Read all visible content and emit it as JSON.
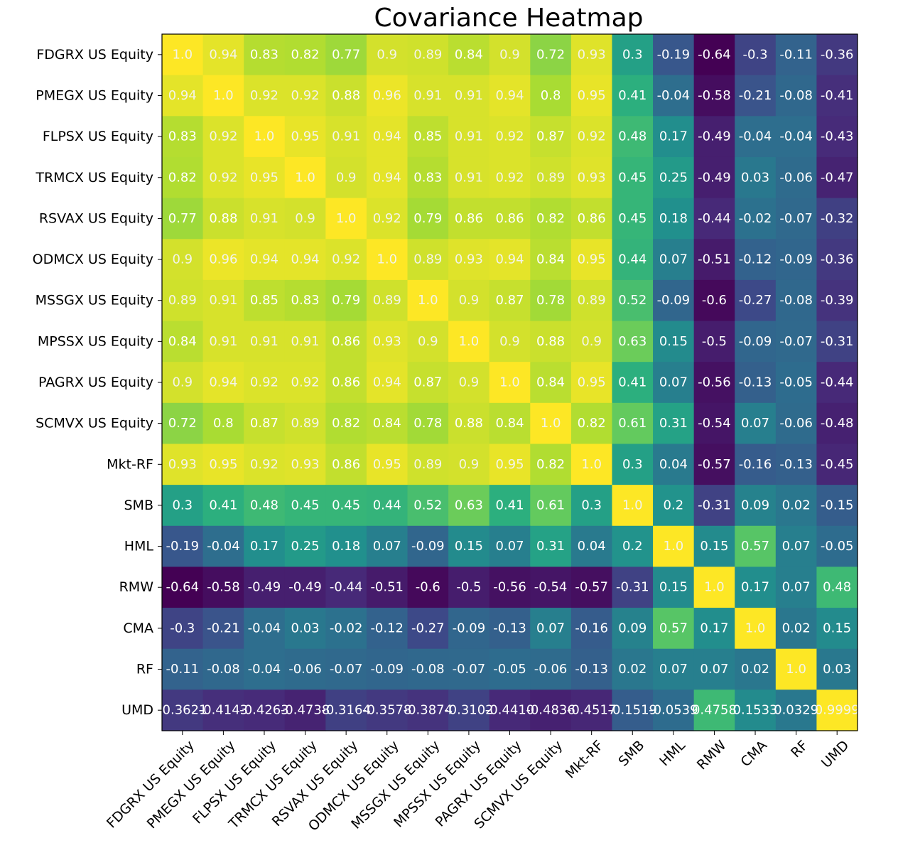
{
  "chart_data": {
    "type": "heatmap",
    "title": "Covariance Heatmap",
    "xlabel": "",
    "ylabel": "",
    "colormap": "viridis",
    "vmin": -0.64,
    "vmax": 1.0,
    "grid": false,
    "labels": [
      "FDGRX US Equity",
      "PMEGX US Equity",
      "FLPSX US Equity",
      "TRMCX US Equity",
      "RSVAX US Equity",
      "ODMCX US Equity",
      "MSSGX US Equity",
      "MPSSX US Equity",
      "PAGRX US Equity",
      "SCMVX US Equity",
      "Mkt-RF",
      "SMB",
      "HML",
      "RMW",
      "CMA",
      "RF",
      "UMD"
    ],
    "matrix": [
      [
        1.0,
        0.94,
        0.83,
        0.82,
        0.77,
        0.9,
        0.89,
        0.84,
        0.9,
        0.72,
        0.93,
        0.3,
        -0.19,
        -0.64,
        -0.3,
        -0.11,
        -0.36
      ],
      [
        0.94,
        1.0,
        0.92,
        0.92,
        0.88,
        0.96,
        0.91,
        0.91,
        0.94,
        0.8,
        0.95,
        0.41,
        -0.04,
        -0.58,
        -0.21,
        -0.08,
        -0.41
      ],
      [
        0.83,
        0.92,
        1.0,
        0.95,
        0.91,
        0.94,
        0.85,
        0.91,
        0.92,
        0.87,
        0.92,
        0.48,
        0.17,
        -0.49,
        -0.04,
        -0.04,
        -0.43
      ],
      [
        0.82,
        0.92,
        0.95,
        1.0,
        0.9,
        0.94,
        0.83,
        0.91,
        0.92,
        0.89,
        0.93,
        0.45,
        0.25,
        -0.49,
        0.03,
        -0.06,
        -0.47
      ],
      [
        0.77,
        0.88,
        0.91,
        0.9,
        1.0,
        0.92,
        0.79,
        0.86,
        0.86,
        0.82,
        0.86,
        0.45,
        0.18,
        -0.44,
        -0.02,
        -0.07,
        -0.32
      ],
      [
        0.9,
        0.96,
        0.94,
        0.94,
        0.92,
        1.0,
        0.89,
        0.93,
        0.94,
        0.84,
        0.95,
        0.44,
        0.07,
        -0.51,
        -0.12,
        -0.09,
        -0.36
      ],
      [
        0.89,
        0.91,
        0.85,
        0.83,
        0.79,
        0.89,
        1.0,
        0.9,
        0.87,
        0.78,
        0.89,
        0.52,
        -0.09,
        -0.6,
        -0.27,
        -0.08,
        -0.39
      ],
      [
        0.84,
        0.91,
        0.91,
        0.91,
        0.86,
        0.93,
        0.9,
        1.0,
        0.9,
        0.88,
        0.9,
        0.63,
        0.15,
        -0.5,
        -0.09,
        -0.07,
        -0.31
      ],
      [
        0.9,
        0.94,
        0.92,
        0.92,
        0.86,
        0.94,
        0.87,
        0.9,
        1.0,
        0.84,
        0.95,
        0.41,
        0.07,
        -0.56,
        -0.13,
        -0.05,
        -0.44
      ],
      [
        0.72,
        0.8,
        0.87,
        0.89,
        0.82,
        0.84,
        0.78,
        0.88,
        0.84,
        1.0,
        0.82,
        0.61,
        0.31,
        -0.54,
        0.07,
        -0.06,
        -0.48
      ],
      [
        0.93,
        0.95,
        0.92,
        0.93,
        0.86,
        0.95,
        0.89,
        0.9,
        0.95,
        0.82,
        1.0,
        0.3,
        0.04,
        -0.57,
        -0.16,
        -0.13,
        -0.45
      ],
      [
        0.3,
        0.41,
        0.48,
        0.45,
        0.45,
        0.44,
        0.52,
        0.63,
        0.41,
        0.61,
        0.3,
        1.0,
        0.2,
        -0.31,
        0.09,
        0.02,
        -0.15
      ],
      [
        -0.19,
        -0.04,
        0.17,
        0.25,
        0.18,
        0.07,
        -0.09,
        0.15,
        0.07,
        0.31,
        0.04,
        0.2,
        1.0,
        0.15,
        0.57,
        0.07,
        -0.05
      ],
      [
        -0.64,
        -0.58,
        -0.49,
        -0.49,
        -0.44,
        -0.51,
        -0.6,
        -0.5,
        -0.56,
        -0.54,
        -0.57,
        -0.31,
        0.15,
        1.0,
        0.17,
        0.07,
        0.48
      ],
      [
        -0.3,
        -0.21,
        -0.04,
        0.03,
        -0.02,
        -0.12,
        -0.27,
        -0.09,
        -0.13,
        0.07,
        -0.16,
        0.09,
        0.57,
        0.17,
        1.0,
        0.02,
        0.15
      ],
      [
        -0.11,
        -0.08,
        -0.04,
        -0.06,
        -0.07,
        -0.09,
        -0.08,
        -0.07,
        -0.05,
        -0.06,
        -0.13,
        0.02,
        0.07,
        0.07,
        0.02,
        1.0,
        0.03
      ],
      [
        -0.36,
        -0.41,
        -0.43,
        -0.47,
        -0.32,
        -0.36,
        -0.39,
        -0.31,
        -0.44,
        -0.48,
        -0.45,
        -0.15,
        -0.05,
        0.48,
        0.15,
        0.03,
        1.0
      ]
    ],
    "cell_text": [
      [
        "1.0",
        "0.94",
        "0.83",
        "0.82",
        "0.77",
        "0.9",
        "0.89",
        "0.84",
        "0.9",
        "0.72",
        "0.93",
        "0.3",
        "-0.19",
        "-0.64",
        "-0.3",
        "-0.11",
        "-0.36"
      ],
      [
        "0.94",
        "1.0",
        "0.92",
        "0.92",
        "0.88",
        "0.96",
        "0.91",
        "0.91",
        "0.94",
        "0.8",
        "0.95",
        "0.41",
        "-0.04",
        "-0.58",
        "-0.21",
        "-0.08",
        "-0.41"
      ],
      [
        "0.83",
        "0.92",
        "1.0",
        "0.95",
        "0.91",
        "0.94",
        "0.85",
        "0.91",
        "0.92",
        "0.87",
        "0.92",
        "0.48",
        "0.17",
        "-0.49",
        "-0.04",
        "-0.04",
        "-0.43"
      ],
      [
        "0.82",
        "0.92",
        "0.95",
        "1.0",
        "0.9",
        "0.94",
        "0.83",
        "0.91",
        "0.92",
        "0.89",
        "0.93",
        "0.45",
        "0.25",
        "-0.49",
        "0.03",
        "-0.06",
        "-0.47"
      ],
      [
        "0.77",
        "0.88",
        "0.91",
        "0.9",
        "1.0",
        "0.92",
        "0.79",
        "0.86",
        "0.86",
        "0.82",
        "0.86",
        "0.45",
        "0.18",
        "-0.44",
        "-0.02",
        "-0.07",
        "-0.32"
      ],
      [
        "0.9",
        "0.96",
        "0.94",
        "0.94",
        "0.92",
        "1.0",
        "0.89",
        "0.93",
        "0.94",
        "0.84",
        "0.95",
        "0.44",
        "0.07",
        "-0.51",
        "-0.12",
        "-0.09",
        "-0.36"
      ],
      [
        "0.89",
        "0.91",
        "0.85",
        "0.83",
        "0.79",
        "0.89",
        "1.0",
        "0.9",
        "0.87",
        "0.78",
        "0.89",
        "0.52",
        "-0.09",
        "-0.6",
        "-0.27",
        "-0.08",
        "-0.39"
      ],
      [
        "0.84",
        "0.91",
        "0.91",
        "0.91",
        "0.86",
        "0.93",
        "0.9",
        "1.0",
        "0.9",
        "0.88",
        "0.9",
        "0.63",
        "0.15",
        "-0.5",
        "-0.09",
        "-0.07",
        "-0.31"
      ],
      [
        "0.9",
        "0.94",
        "0.92",
        "0.92",
        "0.86",
        "0.94",
        "0.87",
        "0.9",
        "1.0",
        "0.84",
        "0.95",
        "0.41",
        "0.07",
        "-0.56",
        "-0.13",
        "-0.05",
        "-0.44"
      ],
      [
        "0.72",
        "0.8",
        "0.87",
        "0.89",
        "0.82",
        "0.84",
        "0.78",
        "0.88",
        "0.84",
        "1.0",
        "0.82",
        "0.61",
        "0.31",
        "-0.54",
        "0.07",
        "-0.06",
        "-0.48"
      ],
      [
        "0.93",
        "0.95",
        "0.92",
        "0.93",
        "0.86",
        "0.95",
        "0.89",
        "0.9",
        "0.95",
        "0.82",
        "1.0",
        "0.3",
        "0.04",
        "-0.57",
        "-0.16",
        "-0.13",
        "-0.45"
      ],
      [
        "0.3",
        "0.41",
        "0.48",
        "0.45",
        "0.45",
        "0.44",
        "0.52",
        "0.63",
        "0.41",
        "0.61",
        "0.3",
        "1.0",
        "0.2",
        "-0.31",
        "0.09",
        "0.02",
        "-0.15"
      ],
      [
        "-0.19",
        "-0.04",
        "0.17",
        "0.25",
        "0.18",
        "0.07",
        "-0.09",
        "0.15",
        "0.07",
        "0.31",
        "0.04",
        "0.2",
        "1.0",
        "0.15",
        "0.57",
        "0.07",
        "-0.05"
      ],
      [
        "-0.64",
        "-0.58",
        "-0.49",
        "-0.49",
        "-0.44",
        "-0.51",
        "-0.6",
        "-0.5",
        "-0.56",
        "-0.54",
        "-0.57",
        "-0.31",
        "0.15",
        "1.0",
        "0.17",
        "0.07",
        "0.48"
      ],
      [
        "-0.3",
        "-0.21",
        "-0.04",
        "0.03",
        "-0.02",
        "-0.12",
        "-0.27",
        "-0.09",
        "-0.13",
        "0.07",
        "-0.16",
        "0.09",
        "0.57",
        "0.17",
        "1.0",
        "0.02",
        "0.15"
      ],
      [
        "-0.11",
        "-0.08",
        "-0.04",
        "-0.06",
        "-0.07",
        "-0.09",
        "-0.08",
        "-0.07",
        "-0.05",
        "-0.06",
        "-0.13",
        "0.02",
        "0.07",
        "0.07",
        "0.02",
        "1.0",
        "0.03"
      ],
      [
        "-0.3621",
        "-0.4143",
        "-0.4263",
        "-0.4738",
        "-0.3164",
        "-0.3578",
        "-0.3874",
        "-0.3102",
        "-0.4410",
        "-0.4836",
        "-0.4517",
        "-0.1519",
        "-0.0539",
        "0.4758",
        "0.1533",
        "0.0329",
        "0.9999"
      ]
    ]
  }
}
